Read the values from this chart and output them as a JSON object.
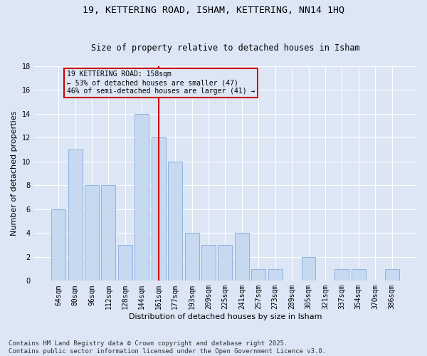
{
  "title1": "19, KETTERING ROAD, ISHAM, KETTERING, NN14 1HQ",
  "title2": "Size of property relative to detached houses in Isham",
  "xlabel": "Distribution of detached houses by size in Isham",
  "ylabel": "Number of detached properties",
  "categories": [
    "64sqm",
    "80sqm",
    "96sqm",
    "112sqm",
    "128sqm",
    "144sqm",
    "161sqm",
    "177sqm",
    "193sqm",
    "209sqm",
    "225sqm",
    "241sqm",
    "257sqm",
    "273sqm",
    "289sqm",
    "305sqm",
    "321sqm",
    "337sqm",
    "354sqm",
    "370sqm",
    "386sqm"
  ],
  "values": [
    6,
    11,
    8,
    8,
    3,
    14,
    12,
    10,
    4,
    3,
    3,
    4,
    1,
    1,
    0,
    2,
    0,
    1,
    1,
    0,
    1
  ],
  "bar_color": "#c6d9f0",
  "bar_edge_color": "#8db3e2",
  "vline_index": 6,
  "vline_color": "#cc0000",
  "annotation_text": "19 KETTERING ROAD: 158sqm\n← 53% of detached houses are smaller (47)\n46% of semi-detached houses are larger (41) →",
  "annotation_box_color": "#cc0000",
  "ylim": [
    0,
    18
  ],
  "yticks": [
    0,
    2,
    4,
    6,
    8,
    10,
    12,
    14,
    16,
    18
  ],
  "footnote": "Contains HM Land Registry data © Crown copyright and database right 2025.\nContains public sector information licensed under the Open Government Licence v3.0.",
  "background_color": "#dce6f5",
  "grid_color": "#ffffff",
  "title_fontsize": 9.5,
  "subtitle_fontsize": 8.5,
  "axis_label_fontsize": 8,
  "tick_fontsize": 7,
  "annotation_fontsize": 7,
  "footnote_fontsize": 6.5
}
